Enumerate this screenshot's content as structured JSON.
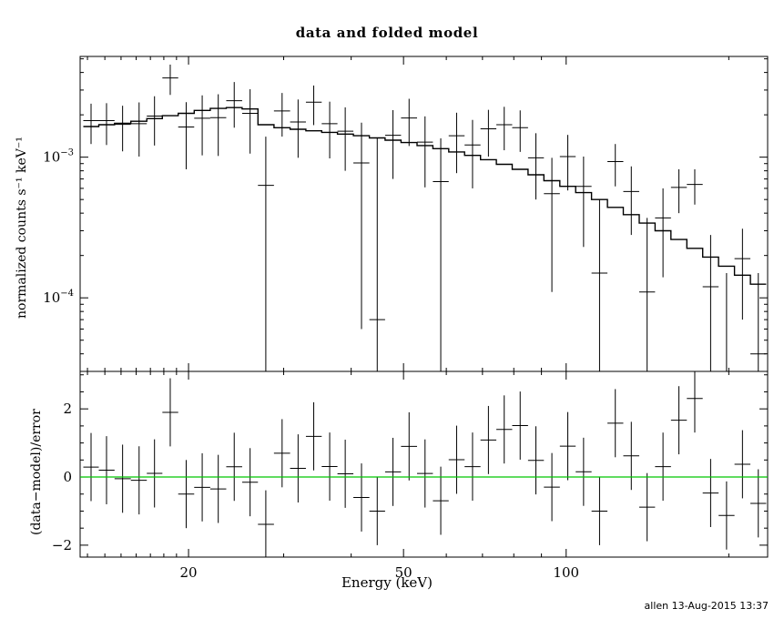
{
  "title": "data and folded model",
  "footer": "allen 13-Aug-2015 13:37",
  "axes": {
    "xlabel": "Energy (keV)",
    "ylabel_top": "normalized counts s⁻¹ keV⁻¹",
    "ylabel_bottom": "(data−model)/error"
  },
  "chart_data": {
    "type": "line",
    "subtype": "xspec-folded-spectrum-with-residuals",
    "title": "data and folded model",
    "xlabel": "Energy (keV)",
    "x_scale": "log",
    "xlim": [
      12.6,
      236
    ],
    "unit_scale": 0.001,
    "x_major_ticks": [
      {
        "value": 20,
        "label": "20"
      },
      {
        "value": 50,
        "label": "50"
      },
      {
        "value": 100,
        "label": "100"
      }
    ],
    "x_minor_ticks": [
      13,
      14,
      15,
      16,
      17,
      18,
      19,
      30,
      40,
      60,
      70,
      80,
      90,
      200
    ],
    "top_panel": {
      "ylabel": "normalized counts s⁻¹ keV⁻¹",
      "y_scale": "log",
      "ylim": [
        3e-05,
        0.0052
      ],
      "y_major_ticks": [
        {
          "value": 0.001,
          "label_base": "10",
          "label_exp": "−3"
        },
        {
          "value": 0.0001,
          "label_base": "10",
          "label_exp": "−4"
        }
      ],
      "y_minor_ticks": [
        4e-05,
        5e-05,
        6e-05,
        7e-05,
        8e-05,
        9e-05,
        0.0002,
        0.0003,
        0.0004,
        0.0005,
        0.0006,
        0.0007,
        0.0008,
        0.0009,
        0.002,
        0.003,
        0.004,
        0.005
      ]
    },
    "bottom_panel": {
      "ylabel": "(data−model)/error",
      "y_scale": "linear",
      "ylim": [
        -2.35,
        3.1
      ],
      "y_major_ticks": [
        {
          "value": 2,
          "label": "2"
        },
        {
          "value": 0,
          "label": "0"
        },
        {
          "value": -2,
          "label": "−2"
        }
      ],
      "y_minor_ticks": [
        -1.5,
        -1,
        -0.5,
        0.5,
        1,
        1.5,
        2.5,
        3
      ],
      "zero_line_color": "#00c800"
    },
    "energy_kev": [
      13.2,
      14.1,
      15.1,
      16.2,
      17.3,
      18.5,
      19.8,
      21.2,
      22.7,
      24.3,
      26.0,
      27.8,
      29.8,
      31.9,
      34.1,
      36.5,
      39.0,
      41.8,
      44.7,
      47.8,
      51.2,
      54.8,
      58.6,
      62.7,
      67.1,
      71.8,
      76.8,
      82.2,
      87.9,
      94.1,
      100.7,
      107.7,
      115.3,
      123.3,
      132.0,
      141.2,
      151.1,
      161.7,
      173.0,
      185.1,
      198.1,
      212.0,
      226.8
    ],
    "model": [
      1.65,
      1.7,
      1.74,
      1.8,
      1.88,
      1.97,
      2.05,
      2.15,
      2.22,
      2.25,
      2.2,
      1.7,
      1.62,
      1.58,
      1.54,
      1.5,
      1.46,
      1.42,
      1.37,
      1.32,
      1.27,
      1.21,
      1.15,
      1.09,
      1.03,
      0.96,
      0.89,
      0.82,
      0.75,
      0.68,
      0.62,
      0.56,
      0.5,
      0.44,
      0.39,
      0.34,
      0.3,
      0.26,
      0.225,
      0.195,
      0.168,
      0.145,
      0.125
    ],
    "data": [
      1.82,
      1.82,
      1.71,
      1.73,
      1.96,
      3.66,
      1.64,
      1.89,
      1.91,
      2.52,
      2.05,
      0.63,
      2.13,
      1.78,
      2.46,
      1.73,
      1.53,
      0.91,
      0.07,
      1.43,
      1.9,
      1.28,
      0.67,
      1.42,
      1.22,
      1.59,
      1.7,
      1.62,
      0.99,
      0.55,
      1.01,
      0.62,
      0.15,
      0.93,
      0.57,
      0.11,
      0.37,
      0.61,
      0.64,
      0.12,
      0.01,
      0.19,
      0.04
    ],
    "error": [
      0.58,
      0.6,
      0.61,
      0.72,
      0.75,
      0.89,
      0.82,
      0.86,
      0.89,
      0.9,
      0.99,
      0.77,
      0.73,
      0.79,
      0.77,
      0.75,
      0.73,
      0.85,
      1.3,
      0.73,
      0.7,
      0.67,
      0.69,
      0.65,
      0.62,
      0.58,
      0.58,
      0.53,
      0.49,
      0.44,
      0.43,
      0.39,
      0.35,
      0.31,
      0.29,
      0.26,
      0.23,
      0.21,
      0.18,
      0.16,
      0.14,
      0.12,
      0.11
    ]
  }
}
